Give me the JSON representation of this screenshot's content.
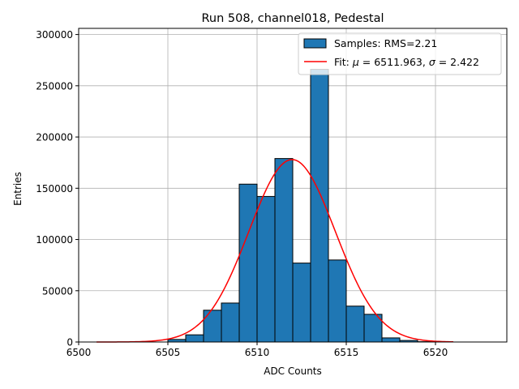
{
  "chart_data": {
    "type": "bar",
    "title": "Run 508, channel018, Pedestal",
    "xlabel": "ADC Counts",
    "ylabel": "Entries",
    "xlim": [
      6500,
      6524
    ],
    "ylim": [
      0,
      306000
    ],
    "xticks": [
      6500,
      6505,
      6510,
      6515,
      6520
    ],
    "yticks": [
      0,
      50000,
      100000,
      150000,
      200000,
      250000,
      300000
    ],
    "grid": true,
    "legend_position": "top-right",
    "histogram": {
      "name": "Samples: RMS=2.21",
      "color": "#1f77b4",
      "bins": [
        {
          "x0": 6505,
          "x1": 6506,
          "count": 2500
        },
        {
          "x0": 6506,
          "x1": 6507,
          "count": 7000
        },
        {
          "x0": 6507,
          "x1": 6508,
          "count": 31000
        },
        {
          "x0": 6508,
          "x1": 6509,
          "count": 38000
        },
        {
          "x0": 6509,
          "x1": 6510,
          "count": 154000
        },
        {
          "x0": 6510,
          "x1": 6511,
          "count": 142000
        },
        {
          "x0": 6511,
          "x1": 6512,
          "count": 179000
        },
        {
          "x0": 6512,
          "x1": 6513,
          "count": 77000
        },
        {
          "x0": 6513,
          "x1": 6514,
          "count": 266000
        },
        {
          "x0": 6514,
          "x1": 6515,
          "count": 80000
        },
        {
          "x0": 6515,
          "x1": 6516,
          "count": 35000
        },
        {
          "x0": 6516,
          "x1": 6517,
          "count": 27000
        },
        {
          "x0": 6517,
          "x1": 6518,
          "count": 4000
        },
        {
          "x0": 6518,
          "x1": 6519,
          "count": 1500
        },
        {
          "x0": 6519,
          "x1": 6520,
          "count": 300
        }
      ]
    },
    "fit": {
      "name": "Fit: μ = 6511.963, σ = 2.422",
      "name_parts": {
        "prefix": "Fit: ",
        "mu_symbol": "μ",
        "mu_text": " = 6511.963, ",
        "sigma_symbol": "σ",
        "sigma_text": " = 2.422"
      },
      "color": "#ff0000",
      "mu": 6511.963,
      "sigma": 2.422,
      "amplitude": 178000,
      "x_range": [
        6501,
        6521
      ]
    }
  }
}
